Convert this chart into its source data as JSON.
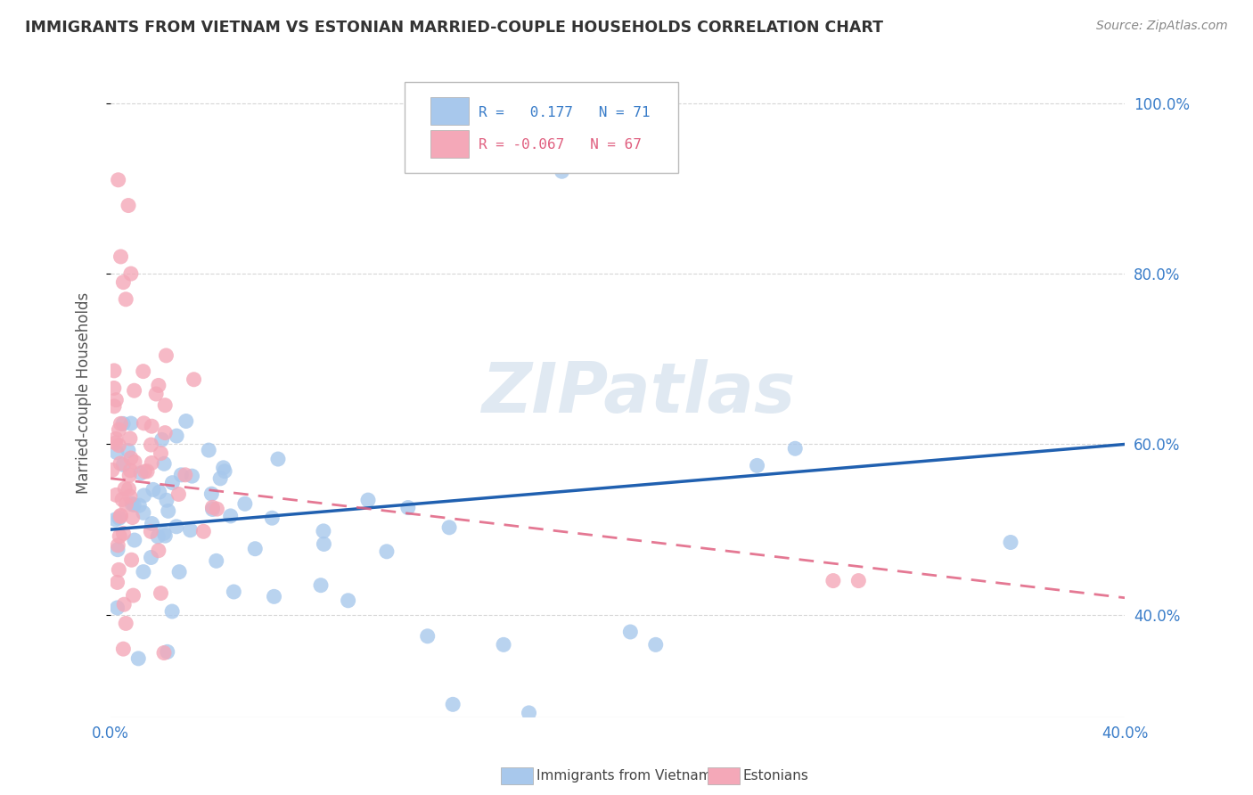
{
  "title": "IMMIGRANTS FROM VIETNAM VS ESTONIAN MARRIED-COUPLE HOUSEHOLDS CORRELATION CHART",
  "source": "Source: ZipAtlas.com",
  "ylabel": "Married-couple Households",
  "R_blue": 0.177,
  "R_pink": -0.067,
  "N_blue": 71,
  "N_pink": 67,
  "blue_color": "#A8C8EC",
  "pink_color": "#F4A8B8",
  "blue_line_color": "#2060B0",
  "pink_line_color": "#E06080",
  "watermark": "ZIPatlas",
  "xlim": [
    0.0,
    0.4
  ],
  "ylim": [
    0.28,
    1.04
  ],
  "y_ticks": [
    0.4,
    0.6,
    0.8,
    1.0
  ],
  "y_tick_labels": [
    "40.0%",
    "60.0%",
    "80.0%",
    "100.0%"
  ]
}
